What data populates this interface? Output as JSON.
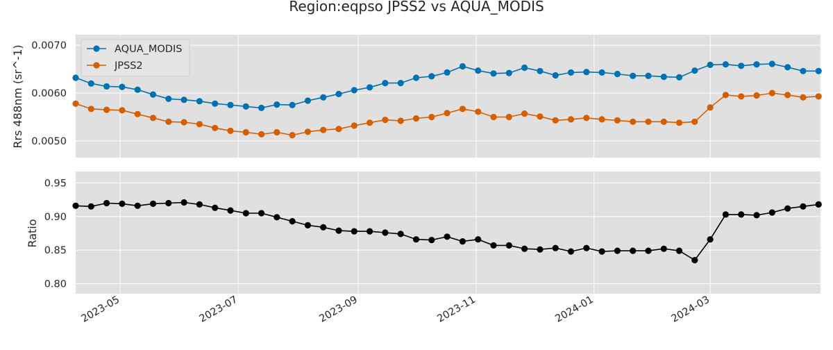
{
  "chart_data": {
    "title": "Region:eqpso JPSS2 vs AQUA_MODIS",
    "x_start": "2023-04-08",
    "x_end": "2024-04-27",
    "dates": [
      "2023-04-08",
      "2023-04-16",
      "2023-04-24",
      "2023-05-02",
      "2023-05-10",
      "2023-05-18",
      "2023-05-26",
      "2023-06-03",
      "2023-06-11",
      "2023-06-19",
      "2023-06-27",
      "2023-07-05",
      "2023-07-13",
      "2023-07-21",
      "2023-07-29",
      "2023-08-06",
      "2023-08-14",
      "2023-08-22",
      "2023-08-30",
      "2023-09-07",
      "2023-09-15",
      "2023-09-23",
      "2023-10-01",
      "2023-10-09",
      "2023-10-17",
      "2023-10-25",
      "2023-11-02",
      "2023-11-10",
      "2023-11-18",
      "2023-11-26",
      "2023-12-04",
      "2023-12-12",
      "2023-12-20",
      "2023-12-28",
      "2024-01-05",
      "2024-01-13",
      "2024-01-21",
      "2024-01-29",
      "2024-02-06",
      "2024-02-14",
      "2024-02-22",
      "2024-03-01",
      "2024-03-09",
      "2024-03-17",
      "2024-03-25",
      "2024-04-02",
      "2024-04-10",
      "2024-04-18",
      "2024-04-26"
    ],
    "x_ticks": [
      "2023-05",
      "2023-07",
      "2023-09",
      "2023-11",
      "2024-01",
      "2024-03"
    ],
    "top": {
      "ylabel": "Rrs 488nm (sr^-1)",
      "ylim": [
        0.00465,
        0.00722
      ],
      "yticks": [
        "0.0050",
        "0.0060",
        "0.0070"
      ],
      "legend_position": "upper-left",
      "series": [
        {
          "name": "AQUA_MODIS",
          "color": "#0072B2",
          "values": [
            0.00632,
            0.0062,
            0.00614,
            0.00613,
            0.00607,
            0.00597,
            0.00588,
            0.00586,
            0.00583,
            0.00578,
            0.00575,
            0.00572,
            0.00569,
            0.00576,
            0.00575,
            0.00584,
            0.00591,
            0.00598,
            0.00606,
            0.00612,
            0.00621,
            0.00621,
            0.00632,
            0.00635,
            0.00643,
            0.00656,
            0.00647,
            0.00641,
            0.00642,
            0.00653,
            0.00646,
            0.00637,
            0.00643,
            0.00644,
            0.00643,
            0.0064,
            0.00636,
            0.00636,
            0.00634,
            0.00633,
            0.00647,
            0.00659,
            0.0066,
            0.00657,
            0.0066,
            0.00661,
            0.00654,
            0.00646,
            0.00646
          ]
        },
        {
          "name": "JPSS2",
          "color": "#D55E00",
          "values": [
            0.00578,
            0.00567,
            0.00565,
            0.00564,
            0.00556,
            0.00548,
            0.0054,
            0.00539,
            0.00535,
            0.00527,
            0.00521,
            0.00518,
            0.00514,
            0.00518,
            0.00512,
            0.00519,
            0.00523,
            0.00525,
            0.00532,
            0.00538,
            0.00544,
            0.00542,
            0.00547,
            0.0055,
            0.00558,
            0.00567,
            0.00561,
            0.0055,
            0.0055,
            0.00557,
            0.00551,
            0.00543,
            0.00545,
            0.00548,
            0.00545,
            0.00543,
            0.0054,
            0.0054,
            0.0054,
            0.00538,
            0.0054,
            0.0057,
            0.00596,
            0.00593,
            0.00595,
            0.006,
            0.00596,
            0.00591,
            0.00593
          ]
        }
      ]
    },
    "bottom": {
      "ylabel": "Ratio",
      "ylim": [
        0.785,
        0.967
      ],
      "yticks": [
        "0.80",
        "0.85",
        "0.90",
        "0.95"
      ],
      "series": [
        {
          "name": "",
          "color": "#000000",
          "values": [
            0.916,
            0.915,
            0.92,
            0.919,
            0.916,
            0.919,
            0.92,
            0.921,
            0.918,
            0.913,
            0.909,
            0.905,
            0.905,
            0.899,
            0.893,
            0.887,
            0.884,
            0.879,
            0.878,
            0.878,
            0.876,
            0.874,
            0.866,
            0.865,
            0.87,
            0.863,
            0.866,
            0.857,
            0.857,
            0.852,
            0.851,
            0.853,
            0.848,
            0.853,
            0.848,
            0.849,
            0.849,
            0.849,
            0.852,
            0.849,
            0.835,
            0.866,
            0.903,
            0.903,
            0.902,
            0.906,
            0.912,
            0.915,
            0.918
          ]
        }
      ]
    }
  }
}
